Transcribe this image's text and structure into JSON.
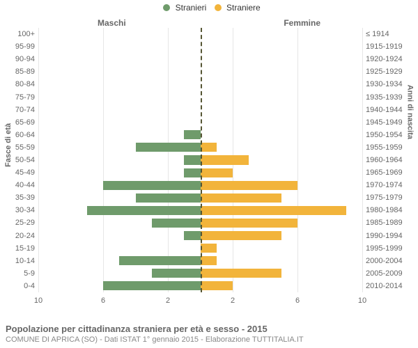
{
  "legend": {
    "male": {
      "label": "Stranieri",
      "color": "#6f9b6b"
    },
    "female": {
      "label": "Straniere",
      "color": "#f2b43b"
    }
  },
  "chart": {
    "type": "population-pyramid",
    "left_title": "Maschi",
    "right_title": "Femmine",
    "y_axis_left_label": "Fasce di età",
    "y_axis_right_label": "Anni di nascita",
    "x_max": 10,
    "x_ticks": [
      10,
      6,
      2,
      2,
      6,
      10
    ],
    "grid_color": "#e6e6e6",
    "center_line_color": "#555533",
    "background_color": "#ffffff",
    "age_label_fontsize": 11,
    "axis_label_fontsize": 11,
    "title_fontsize": 12,
    "bands": [
      {
        "age": "100+",
        "birth": "≤ 1914",
        "m": 0,
        "f": 0
      },
      {
        "age": "95-99",
        "birth": "1915-1919",
        "m": 0,
        "f": 0
      },
      {
        "age": "90-94",
        "birth": "1920-1924",
        "m": 0,
        "f": 0
      },
      {
        "age": "85-89",
        "birth": "1925-1929",
        "m": 0,
        "f": 0
      },
      {
        "age": "80-84",
        "birth": "1930-1934",
        "m": 0,
        "f": 0
      },
      {
        "age": "75-79",
        "birth": "1935-1939",
        "m": 0,
        "f": 0
      },
      {
        "age": "70-74",
        "birth": "1940-1944",
        "m": 0,
        "f": 0
      },
      {
        "age": "65-69",
        "birth": "1945-1949",
        "m": 0,
        "f": 0
      },
      {
        "age": "60-64",
        "birth": "1950-1954",
        "m": 1,
        "f": 0
      },
      {
        "age": "55-59",
        "birth": "1955-1959",
        "m": 4,
        "f": 1
      },
      {
        "age": "50-54",
        "birth": "1960-1964",
        "m": 1,
        "f": 3
      },
      {
        "age": "45-49",
        "birth": "1965-1969",
        "m": 1,
        "f": 2
      },
      {
        "age": "40-44",
        "birth": "1970-1974",
        "m": 6,
        "f": 6
      },
      {
        "age": "35-39",
        "birth": "1975-1979",
        "m": 4,
        "f": 5
      },
      {
        "age": "30-34",
        "birth": "1980-1984",
        "m": 7,
        "f": 9
      },
      {
        "age": "25-29",
        "birth": "1985-1989",
        "m": 3,
        "f": 6
      },
      {
        "age": "20-24",
        "birth": "1990-1994",
        "m": 1,
        "f": 5
      },
      {
        "age": "15-19",
        "birth": "1995-1999",
        "m": 0,
        "f": 1
      },
      {
        "age": "10-14",
        "birth": "2000-2004",
        "m": 5,
        "f": 1
      },
      {
        "age": "5-9",
        "birth": "2005-2009",
        "m": 3,
        "f": 5
      },
      {
        "age": "0-4",
        "birth": "2010-2014",
        "m": 6,
        "f": 2
      }
    ]
  },
  "caption": {
    "title": "Popolazione per cittadinanza straniera per età e sesso - 2015",
    "subtitle": "COMUNE DI APRICA (SO) - Dati ISTAT 1° gennaio 2015 - Elaborazione TUTTITALIA.IT"
  }
}
